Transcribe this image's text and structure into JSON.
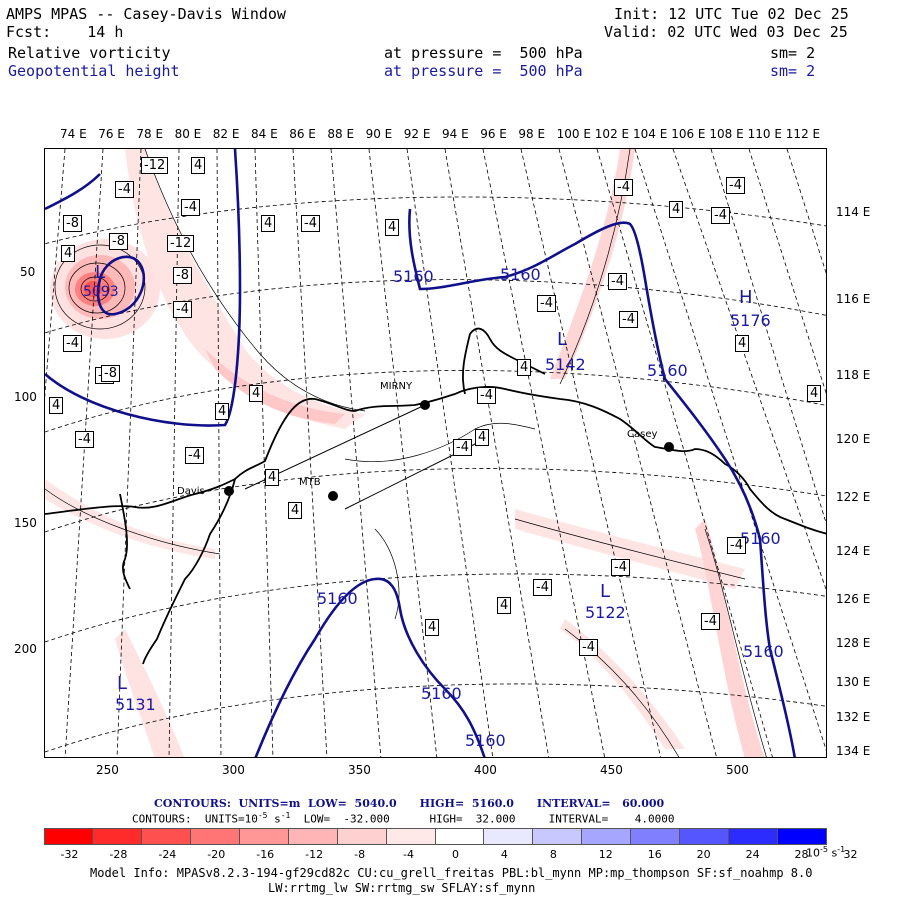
{
  "header": {
    "title": "AMPS MPAS -- Casey-Davis Window",
    "fcst": "Fcst:    14 h",
    "init": "Init: 12 UTC Tue 02 Dec 25",
    "valid": "Valid: 02 UTC Wed 03 Dec 25",
    "field1_name": "Relative vorticity",
    "field1_level": "at pressure =  500 hPa",
    "field1_sm": "sm= 2",
    "field2_name": "Geopotential height",
    "field2_level": "at pressure =  500 hPa",
    "field2_sm": "sm= 2"
  },
  "axes": {
    "top_lon_labels": [
      "74 E",
      "76 E",
      "78 E",
      "80 E",
      "82 E",
      "84 E",
      "86 E",
      "88 E",
      "90 E",
      "92 E",
      "94 E",
      "96 E",
      "98 E",
      "100 E",
      "102 E",
      "104 E",
      "106 E",
      "108 E",
      "110 E",
      "112 E"
    ],
    "right_lon_labels": [
      "114 E",
      "116 E",
      "118 E",
      "120 E",
      "122 E",
      "124 E",
      "126 E",
      "128 E",
      "130 E",
      "132 E",
      "134 E"
    ],
    "left_ticks": [
      "50",
      "100",
      "150",
      "200"
    ],
    "bottom_ticks": [
      "250",
      "300",
      "350",
      "400",
      "450",
      "500"
    ]
  },
  "map_labels": {
    "stations": [
      "MIRNY",
      "Casey",
      "Davis",
      "MTB"
    ],
    "height_contours": [
      "5160",
      "5160",
      "5160",
      "5160",
      "5160",
      "5160",
      "5160",
      "5160"
    ],
    "highs_lows": [
      "L",
      "L",
      "L",
      "L",
      "H"
    ],
    "center_values": [
      "5142",
      "5122",
      "5131",
      "5176",
      "5093"
    ],
    "vorticity_boxes": [
      "-12",
      "4",
      "-4",
      "-8",
      "-12",
      "-8",
      "-4",
      "4",
      "-4",
      "-4",
      "4",
      "-8",
      "4",
      "-4",
      "-4",
      "4",
      "-8",
      "4",
      "4",
      "-4",
      "4",
      "-4",
      "4",
      "-4",
      "4",
      "4",
      "-4",
      "-4",
      "-4",
      "4",
      "-4",
      "-4",
      "-4",
      "-4",
      "4",
      "-4",
      "-4",
      "4",
      "4",
      "-4",
      "-4",
      "-4",
      "4"
    ]
  },
  "legend": {
    "contour_line1": "CONTOURS:  UNITS=m  LOW=  5040.0      HIGH=  5160.0      INTERVAL=   60.000",
    "contour_line2_a": "CONTOURS:  UNITS=10",
    "contour_line2_exp": "-5",
    "contour_line2_b": " s",
    "contour_line2_exp2": "-1",
    "contour_line2_c": "  LOW=  -32.000      HIGH=  32.000     INTERVAL=    4.0000",
    "colorbar_labels": [
      "-32",
      "-28",
      "-24",
      "-20",
      "-16",
      "-12",
      "-8",
      "-4",
      "0",
      "4",
      "8",
      "12",
      "16",
      "20",
      "24",
      "28",
      "32"
    ],
    "colorbar_unit": "10",
    "colorbar_unit_exp": "-5",
    "colorbar_unit_s": " s",
    "colorbar_unit_exp2": "-1",
    "colors": [
      "#ff0000",
      "#ff2a2a",
      "#ff5050",
      "#ff7575",
      "#ff9797",
      "#ffb5b5",
      "#ffd0d0",
      "#ffe8e8",
      "#ffffff",
      "#ffffff",
      "#e8e8ff",
      "#c8c8ff",
      "#a6a6ff",
      "#8080ff",
      "#5656ff",
      "#2c2cff",
      "#0000ff"
    ]
  },
  "model_info": {
    "line1": "Model Info: MPASv8.2.3-194-gf29cd82c CU:cu_grell_freitas PBL:bl_mynn MP:mp_thompson SF:sf_noahmp 8.0",
    "line2": "LW:rrtmg_lw SW:rrtmg_sw SFLAY:sf_mynn"
  }
}
